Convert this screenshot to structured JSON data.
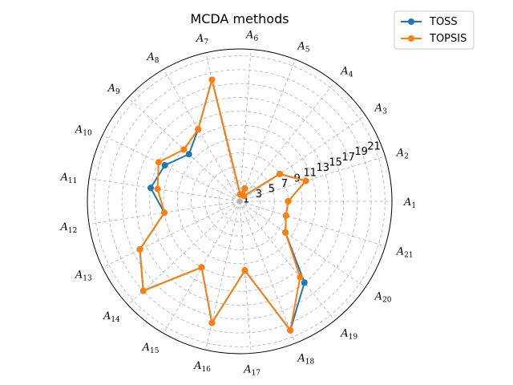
{
  "chart_data": {
    "type": "radar",
    "title": "MCDA methods",
    "categories": [
      "A",
      "A",
      "A",
      "A",
      "A",
      "A",
      "A",
      "A",
      "A",
      "A",
      "A",
      "A",
      "A",
      "A",
      "A",
      "A",
      "A",
      "A",
      "A",
      "A",
      "A"
    ],
    "category_subscripts": [
      "1",
      "2",
      "3",
      "4",
      "5",
      "6",
      "7",
      "8",
      "9",
      "10",
      "11",
      "12",
      "13",
      "14",
      "15",
      "16",
      "17",
      "18",
      "19",
      "20",
      "21"
    ],
    "r_ticks": [
      1,
      3,
      5,
      7,
      9,
      11,
      13,
      15,
      17,
      19,
      21
    ],
    "rlim": [
      0,
      22
    ],
    "grid": true,
    "legend_position": "top-right",
    "series": [
      {
        "name": "TOSS",
        "color": "#1f77b4",
        "values": [
          7,
          10,
          7,
          1,
          2,
          1,
          18,
          12,
          10,
          12,
          13,
          11,
          16,
          19,
          11,
          18,
          10,
          20,
          15,
          8,
          7
        ]
      },
      {
        "name": "TOPSIS",
        "color": "#ff7f0e",
        "values": [
          7,
          10,
          7,
          1,
          2,
          1,
          18,
          12,
          11,
          13,
          12,
          11,
          16,
          19,
          11,
          18,
          10,
          20,
          14,
          8,
          7
        ]
      }
    ]
  }
}
